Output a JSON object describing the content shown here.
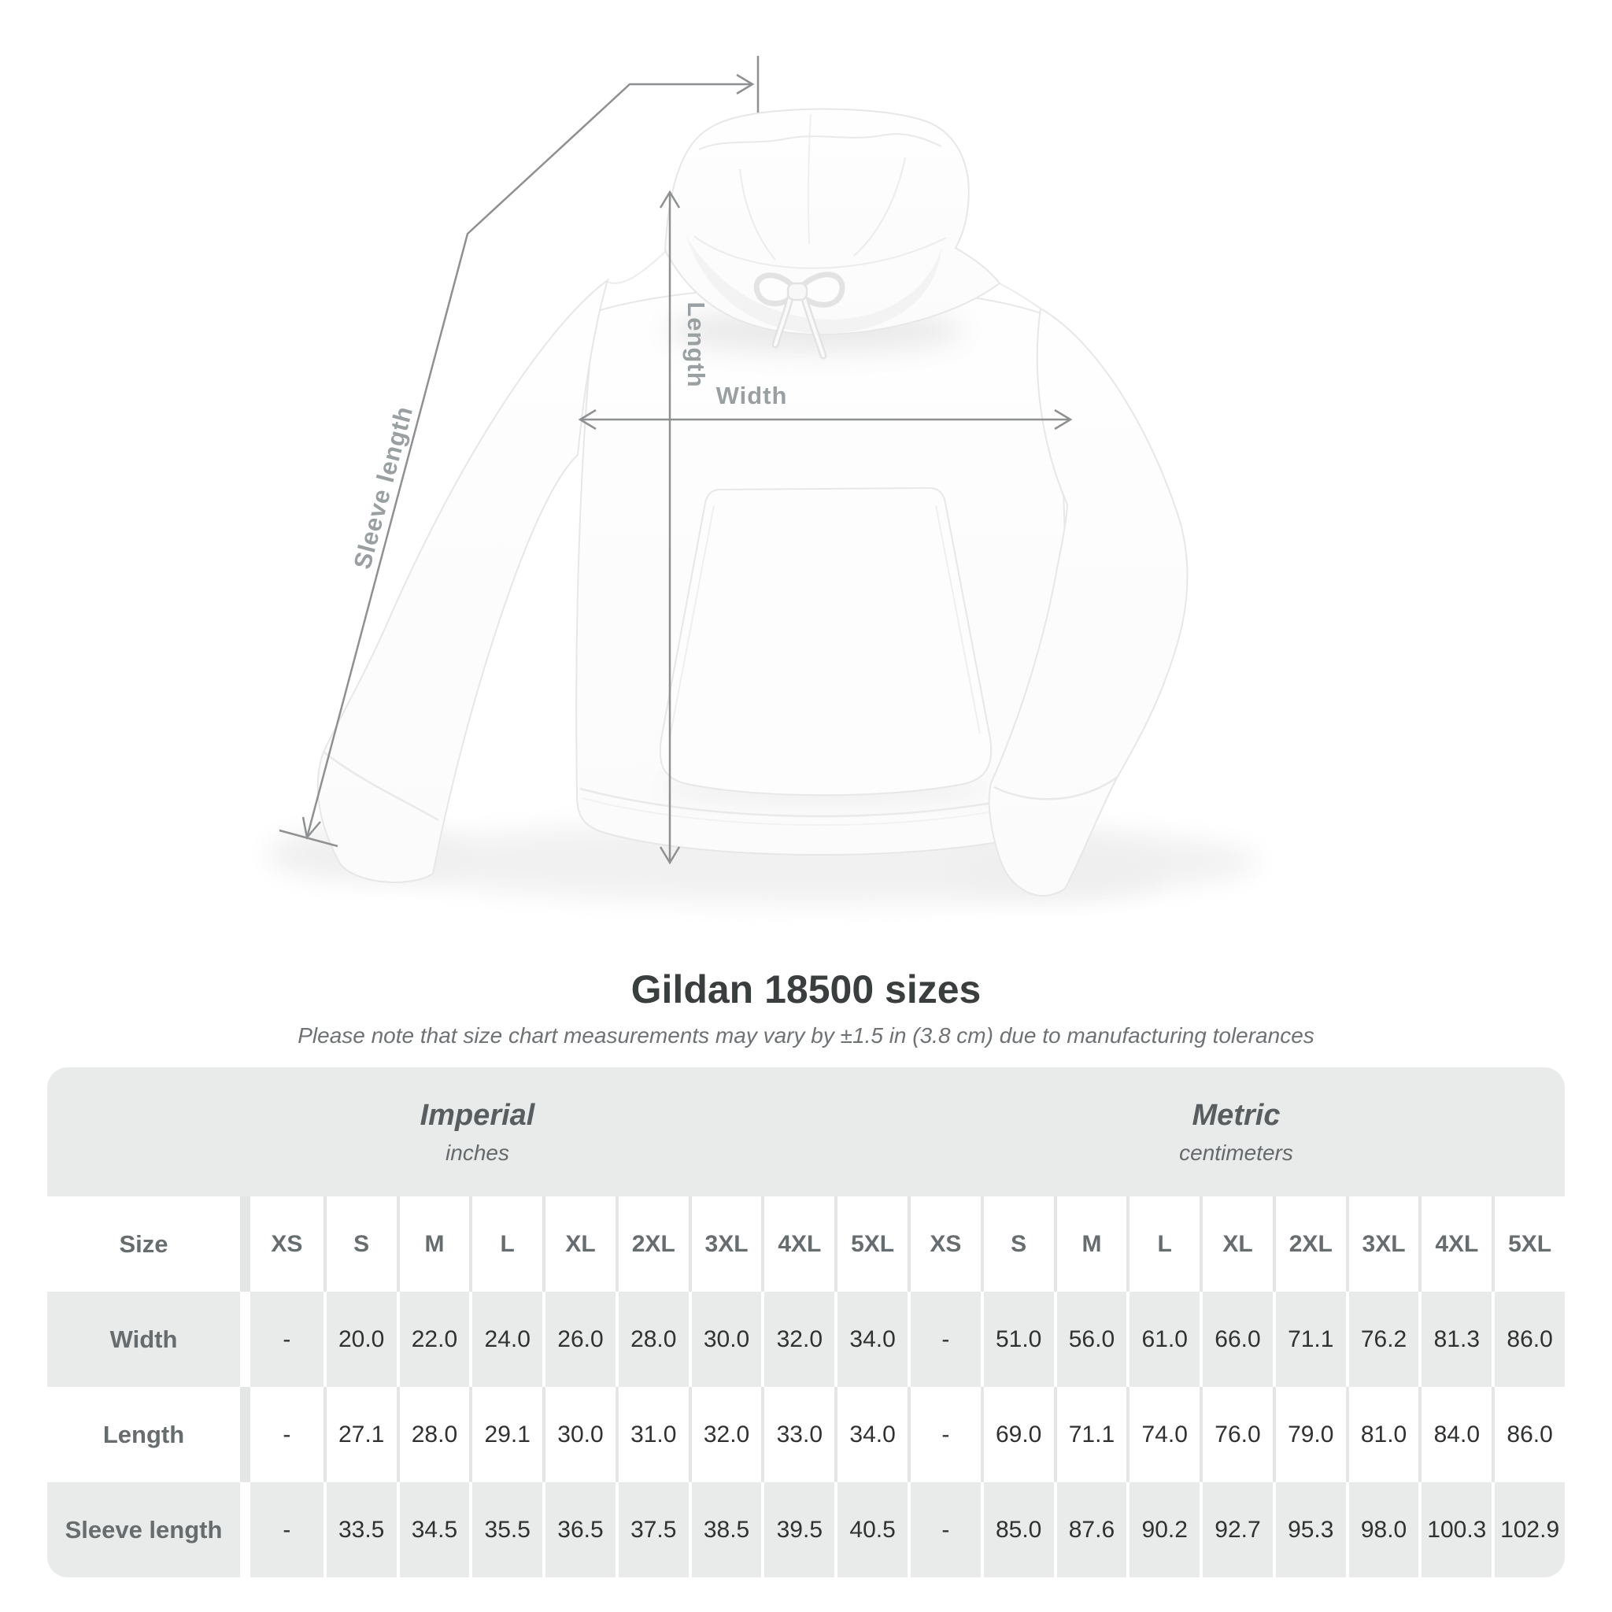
{
  "diagram": {
    "labels": {
      "sleeve_length": "Sleeve length",
      "length": "Length",
      "width": "Width"
    },
    "subject": "white pullover hoodie flat lay with measurement arrows",
    "annotation_color": "#8e9092",
    "label_color": "#9aa0a2"
  },
  "heading": {
    "title": "Gildan 18500 sizes",
    "note": "Please note that size chart measurements may vary by ±1.5 in (3.8 cm) due to manufacturing tolerances"
  },
  "size_table": {
    "unit_groups": [
      {
        "name": "Imperial",
        "unit": "inches"
      },
      {
        "name": "Metric",
        "unit": "centimeters"
      }
    ],
    "header": {
      "label": "Size",
      "imperial_sizes": [
        "XS",
        "S",
        "M",
        "L",
        "XL",
        "2XL",
        "3XL",
        "4XL",
        "5XL"
      ],
      "metric_sizes": [
        "XS",
        "S",
        "M",
        "L",
        "XL",
        "2XL",
        "3XL",
        "4XL",
        "5XL"
      ]
    },
    "rows": [
      {
        "label": "Width",
        "imperial": [
          "-",
          "20.0",
          "22.0",
          "24.0",
          "26.0",
          "28.0",
          "30.0",
          "32.0",
          "34.0"
        ],
        "metric": [
          "-",
          "51.0",
          "56.0",
          "61.0",
          "66.0",
          "71.1",
          "76.2",
          "81.3",
          "86.0"
        ]
      },
      {
        "label": "Length",
        "imperial": [
          "-",
          "27.1",
          "28.0",
          "29.1",
          "30.0",
          "31.0",
          "32.0",
          "33.0",
          "34.0"
        ],
        "metric": [
          "-",
          "69.0",
          "71.1",
          "74.0",
          "76.0",
          "79.0",
          "81.0",
          "84.0",
          "86.0"
        ]
      },
      {
        "label": "Sleeve length",
        "imperial": [
          "-",
          "33.5",
          "34.5",
          "35.5",
          "36.5",
          "37.5",
          "38.5",
          "39.5",
          "40.5"
        ],
        "metric": [
          "-",
          "85.0",
          "87.6",
          "90.2",
          "92.7",
          "95.3",
          "98.0",
          "100.3",
          "102.9"
        ]
      }
    ]
  },
  "colors": {
    "page_bg": "#ffffff",
    "band_bg": "#e9eaea",
    "stripe_bg": "#e9eaea",
    "title_text": "#3b3e3e",
    "note_text": "#6e7274",
    "value_text": "#2f3132",
    "label_text": "#676d6f"
  }
}
